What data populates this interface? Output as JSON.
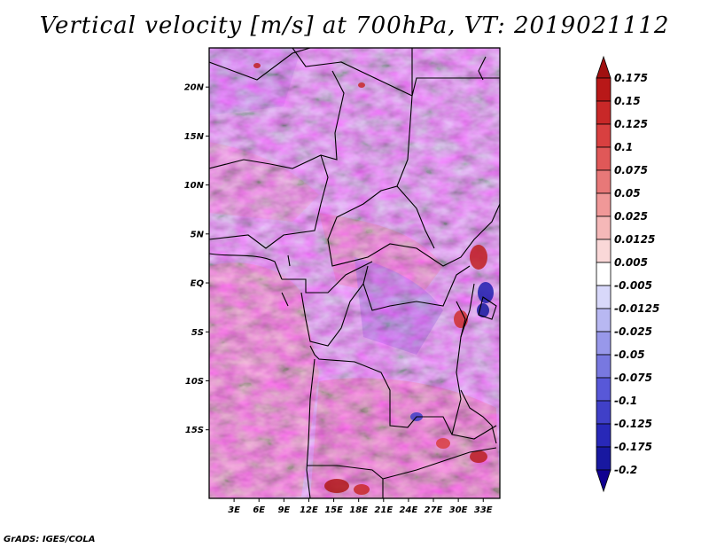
{
  "title": "Vertical velocity [m/s] at 700hPa, VT: 2019021112",
  "footer": "GrADS: IGES/COLA",
  "map": {
    "variable": "Vertical velocity",
    "units": "m/s",
    "level": "700hPa",
    "valid_time": "2019021112",
    "lon_range": [
      0,
      35
    ],
    "lat_range": [
      -22,
      24
    ],
    "lat_ticks": [
      "20N",
      "15N",
      "10N",
      "5N",
      "EQ",
      "5S",
      "10S",
      "15S"
    ],
    "lat_values": [
      20,
      15,
      10,
      5,
      0,
      -5,
      -10,
      -15
    ],
    "lon_ticks": [
      "3E",
      "6E",
      "9E",
      "12E",
      "15E",
      "18E",
      "21E",
      "24E",
      "27E",
      "30E",
      "33E"
    ],
    "lon_values": [
      3,
      6,
      9,
      12,
      15,
      18,
      21,
      24,
      27,
      30,
      33
    ]
  },
  "colorbar": {
    "labels": [
      "0.175",
      "0.15",
      "0.125",
      "0.1",
      "0.075",
      "0.05",
      "0.025",
      "0.0125",
      "0.005",
      "-0.005",
      "-0.0125",
      "-0.025",
      "-0.05",
      "-0.075",
      "-0.1",
      "-0.125",
      "-0.175",
      "-0.2"
    ],
    "colors": [
      "#a01010",
      "#b81818",
      "#c82828",
      "#d84040",
      "#e05858",
      "#e87878",
      "#f09898",
      "#f5b8b8",
      "#fad8d8",
      "#ffffff",
      "#d8d8fa",
      "#b8b8f2",
      "#9898ea",
      "#7878e0",
      "#5858d8",
      "#4040c8",
      "#2828b8",
      "#1818a0",
      "#100090"
    ]
  }
}
